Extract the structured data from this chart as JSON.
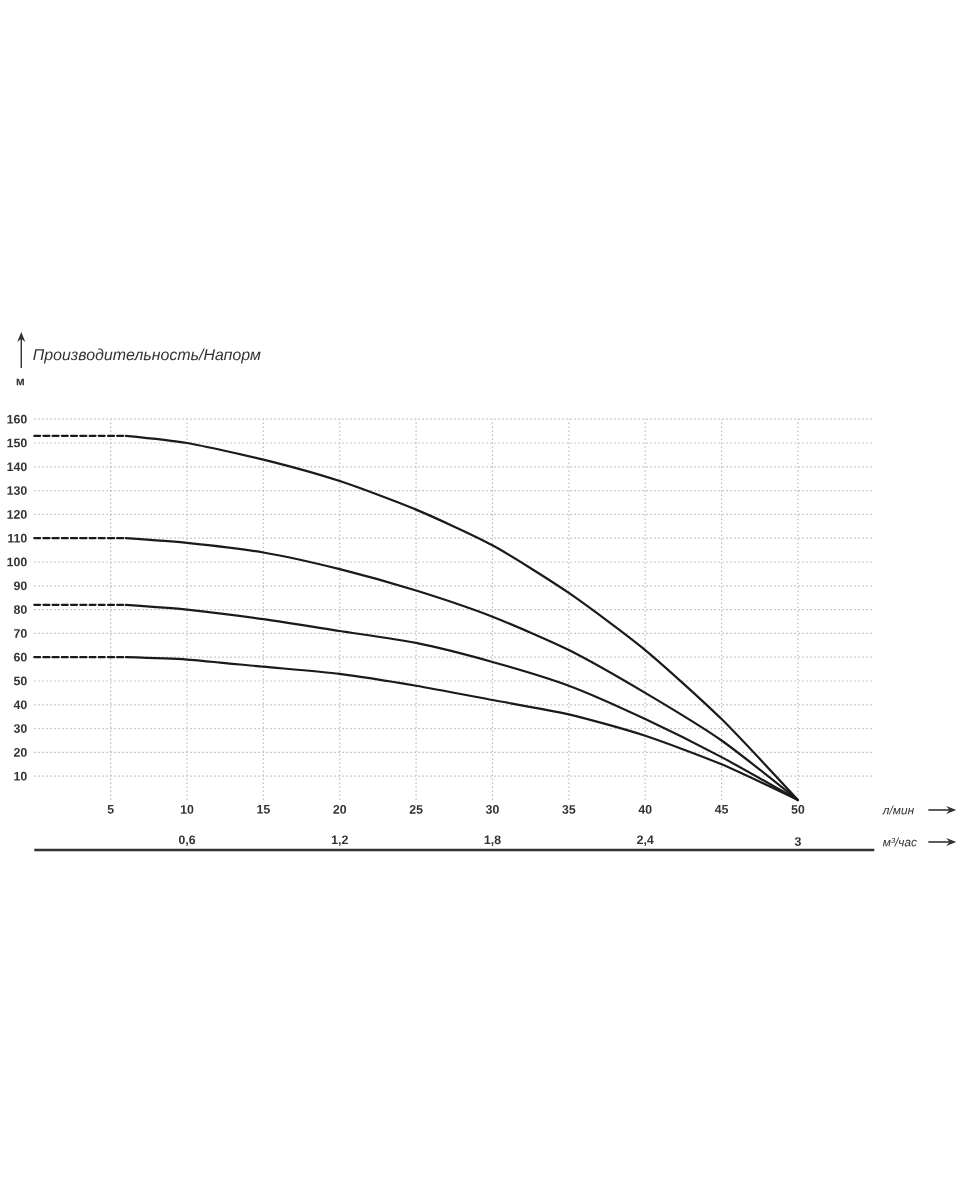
{
  "chart_data": {
    "type": "line",
    "title": "Производительность/Напорм",
    "ylabel": "м",
    "xlabel": "л/мин",
    "x2label": "м³/час",
    "xlim": [
      0,
      55
    ],
    "xticks": [
      5,
      10,
      15,
      20,
      25,
      30,
      35,
      40,
      45,
      50
    ],
    "ylim": [
      0,
      160
    ],
    "yticks": [
      10,
      20,
      30,
      40,
      50,
      60,
      70,
      80,
      90,
      100,
      110,
      120,
      130,
      140,
      150,
      160
    ],
    "x2lim": [
      0,
      3.3
    ],
    "x2ticks": [
      {
        "value": 0.6,
        "label": "0,6"
      },
      {
        "value": 1.2,
        "label": "1,2"
      },
      {
        "value": 1.8,
        "label": "1,8"
      },
      {
        "value": 2.4,
        "label": "2,4"
      },
      3
    ],
    "grid": true,
    "marker": "none",
    "series": [
      {
        "color": "#1a1a1a",
        "line_style": "dashed",
        "x": [
          0,
          6
        ],
        "values": [
          153,
          153
        ]
      },
      {
        "color": "#1a1a1a",
        "line_style": "solid",
        "x": [
          6,
          10,
          15,
          20,
          25,
          30,
          35,
          40,
          45,
          50
        ],
        "values": [
          153,
          150,
          143,
          134,
          122,
          107,
          87,
          63,
          34,
          0
        ]
      },
      {
        "color": "#1a1a1a",
        "line_style": "dashed",
        "x": [
          0,
          6
        ],
        "values": [
          110,
          110
        ]
      },
      {
        "color": "#1a1a1a",
        "line_style": "solid",
        "x": [
          6,
          10,
          15,
          20,
          25,
          30,
          35,
          40,
          45,
          50
        ],
        "values": [
          110,
          108,
          104,
          97,
          88,
          77,
          63,
          45,
          25,
          0
        ]
      },
      {
        "color": "#1a1a1a",
        "line_style": "dashed",
        "x": [
          0,
          6
        ],
        "values": [
          82,
          82
        ]
      },
      {
        "color": "#1a1a1a",
        "line_style": "solid",
        "x": [
          6,
          10,
          15,
          20,
          25,
          30,
          35,
          40,
          45,
          50
        ],
        "values": [
          82,
          80,
          76,
          71,
          66,
          58,
          48,
          34,
          18,
          0
        ]
      },
      {
        "color": "#1a1a1a",
        "line_style": "dashed",
        "x": [
          0,
          6
        ],
        "values": [
          60,
          60
        ]
      },
      {
        "color": "#1a1a1a",
        "line_style": "solid",
        "x": [
          6,
          10,
          15,
          20,
          25,
          30,
          35,
          40,
          45,
          50
        ],
        "values": [
          60,
          59,
          56,
          53,
          48,
          42,
          36,
          27,
          15,
          0
        ]
      }
    ]
  }
}
